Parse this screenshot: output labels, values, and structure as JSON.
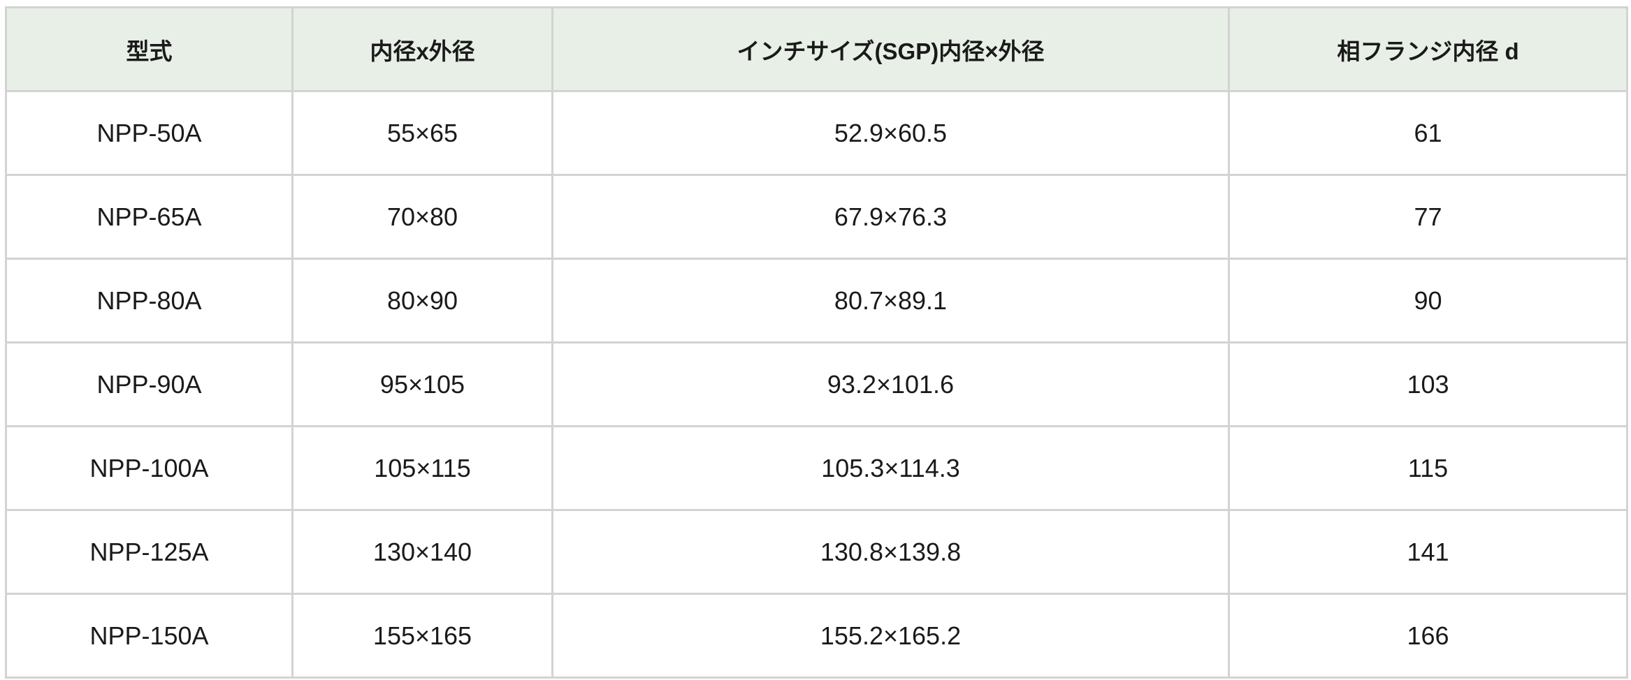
{
  "table": {
    "headers": [
      "型式",
      "内径x外径",
      "インチサイズ(SGP)内径×外径",
      "相フランジ内径 d"
    ],
    "rows": [
      [
        "NPP-50A",
        "55×65",
        "52.9×60.5",
        "61"
      ],
      [
        "NPP-65A",
        "70×80",
        "67.9×76.3",
        "77"
      ],
      [
        "NPP-80A",
        "80×90",
        "80.7×89.1",
        "90"
      ],
      [
        "NPP-90A",
        "95×105",
        "93.2×101.6",
        "103"
      ],
      [
        "NPP-100A",
        "105×115",
        "105.3×114.3",
        "115"
      ],
      [
        "NPP-125A",
        "130×140",
        "130.8×139.8",
        "141"
      ],
      [
        "NPP-150A",
        "155×165",
        "155.2×165.2",
        "166"
      ]
    ]
  },
  "colors": {
    "header_bg": "#e7efe6",
    "border": "#d3d3d3"
  }
}
